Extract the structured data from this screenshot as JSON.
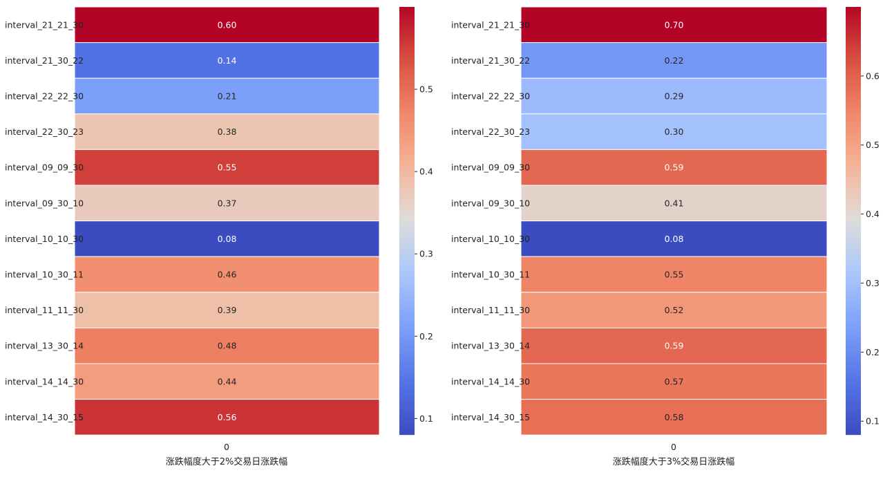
{
  "chart_data": [
    {
      "type": "heatmap",
      "colormap": "coolwarm",
      "rows": [
        "interval_21_21_30",
        "interval_21_30_22",
        "interval_22_22_30",
        "interval_22_30_23",
        "interval_09_09_30",
        "interval_09_30_10",
        "interval_10_10_30",
        "interval_10_30_11",
        "interval_11_11_30",
        "interval_13_30_14",
        "interval_14_14_30",
        "interval_14_30_15"
      ],
      "columns": [
        "0"
      ],
      "values": [
        0.6,
        0.14,
        0.21,
        0.38,
        0.55,
        0.37,
        0.08,
        0.46,
        0.39,
        0.48,
        0.44,
        0.56
      ],
      "value_labels": [
        "0.60",
        "0.14",
        "0.21",
        "0.38",
        "0.55",
        "0.37",
        "0.08",
        "0.46",
        "0.39",
        "0.48",
        "0.44",
        "0.56"
      ],
      "xlabel": "涨跌幅度大于2%交易日涨跌幅",
      "vmin": 0.08,
      "vmax": 0.6,
      "colorbar_ticks": [
        0.1,
        0.2,
        0.3,
        0.4,
        0.5
      ],
      "colorbar_tick_labels": [
        "0.1",
        "0.2",
        "0.3",
        "0.4",
        "0.5"
      ]
    },
    {
      "type": "heatmap",
      "colormap": "coolwarm",
      "rows": [
        "interval_21_21_30",
        "interval_21_30_22",
        "interval_22_22_30",
        "interval_22_30_23",
        "interval_09_09_30",
        "interval_09_30_10",
        "interval_10_10_30",
        "interval_10_30_11",
        "interval_11_11_30",
        "interval_13_30_14",
        "interval_14_14_30",
        "interval_14_30_15"
      ],
      "columns": [
        "0"
      ],
      "values": [
        0.7,
        0.22,
        0.29,
        0.3,
        0.59,
        0.41,
        0.08,
        0.55,
        0.52,
        0.59,
        0.57,
        0.58
      ],
      "value_labels": [
        "0.70",
        "0.22",
        "0.29",
        "0.30",
        "0.59",
        "0.41",
        "0.08",
        "0.55",
        "0.52",
        "0.59",
        "0.57",
        "0.58"
      ],
      "xlabel": "涨跌幅度大于3%交易日涨跌幅",
      "vmin": 0.08,
      "vmax": 0.7,
      "colorbar_ticks": [
        0.1,
        0.2,
        0.3,
        0.4,
        0.5,
        0.6
      ],
      "colorbar_tick_labels": [
        "0.1",
        "0.2",
        "0.3",
        "0.4",
        "0.5",
        "0.6"
      ]
    }
  ]
}
